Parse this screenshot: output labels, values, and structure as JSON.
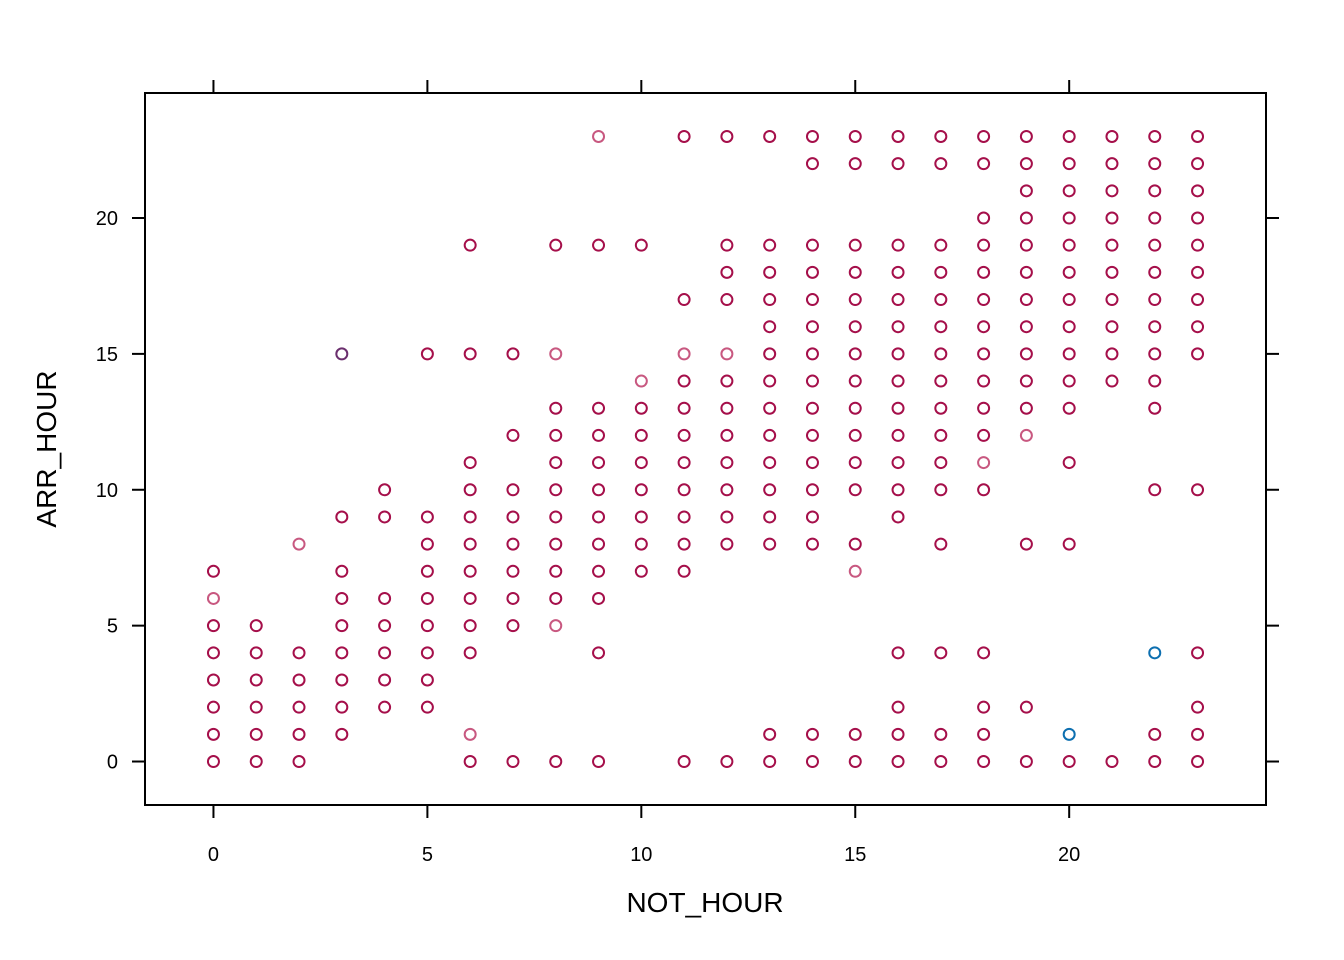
{
  "chart_data": {
    "type": "scatter",
    "title": "",
    "xlabel": "NOT_HOUR",
    "ylabel": "ARR_HOUR",
    "xlim": [
      -1.6,
      24.6
    ],
    "ylim": [
      -1.6,
      24.6
    ],
    "xticks": [
      0,
      5,
      10,
      15,
      20
    ],
    "yticks": [
      0,
      5,
      10,
      15,
      20
    ],
    "grid": false,
    "colors": {
      "default": "#a50f4a",
      "light": "#c85880",
      "purple": "#6b2f6e",
      "blue": "#0d6fb0"
    },
    "points": [
      {
        "x": 0,
        "ys": [
          0,
          1,
          2,
          3,
          4,
          5,
          6,
          7
        ]
      },
      {
        "x": 1,
        "ys": [
          0,
          1,
          2,
          3,
          4,
          5
        ]
      },
      {
        "x": 2,
        "ys": [
          0,
          1,
          2,
          3,
          4,
          8
        ]
      },
      {
        "x": 3,
        "ys": [
          1,
          2,
          3,
          4,
          5,
          6,
          7,
          9,
          15
        ]
      },
      {
        "x": 4,
        "ys": [
          2,
          3,
          4,
          5,
          6,
          9,
          10
        ]
      },
      {
        "x": 5,
        "ys": [
          2,
          3,
          4,
          5,
          6,
          7,
          8,
          9,
          15
        ]
      },
      {
        "x": 6,
        "ys": [
          0,
          1,
          4,
          5,
          6,
          7,
          8,
          9,
          10,
          11,
          15,
          19
        ]
      },
      {
        "x": 7,
        "ys": [
          0,
          5,
          6,
          7,
          8,
          9,
          10,
          12,
          15
        ]
      },
      {
        "x": 8,
        "ys": [
          0,
          5,
          6,
          7,
          8,
          9,
          10,
          11,
          12,
          13,
          15,
          19
        ]
      },
      {
        "x": 9,
        "ys": [
          0,
          4,
          6,
          7,
          8,
          9,
          10,
          11,
          12,
          13,
          19,
          23
        ]
      },
      {
        "x": 10,
        "ys": [
          7,
          8,
          9,
          10,
          11,
          12,
          13,
          14,
          19
        ]
      },
      {
        "x": 11,
        "ys": [
          0,
          7,
          8,
          9,
          10,
          11,
          12,
          13,
          14,
          15,
          17,
          23
        ]
      },
      {
        "x": 12,
        "ys": [
          0,
          8,
          9,
          10,
          11,
          12,
          13,
          14,
          15,
          17,
          18,
          19,
          23
        ]
      },
      {
        "x": 13,
        "ys": [
          0,
          1,
          8,
          9,
          10,
          11,
          12,
          13,
          14,
          15,
          16,
          17,
          18,
          19,
          23
        ]
      },
      {
        "x": 14,
        "ys": [
          0,
          1,
          8,
          9,
          10,
          11,
          12,
          13,
          14,
          15,
          16,
          17,
          18,
          19,
          22,
          23
        ]
      },
      {
        "x": 15,
        "ys": [
          0,
          1,
          7,
          8,
          10,
          11,
          12,
          13,
          14,
          15,
          16,
          17,
          18,
          19,
          22,
          23
        ]
      },
      {
        "x": 16,
        "ys": [
          0,
          1,
          2,
          4,
          9,
          10,
          11,
          12,
          13,
          14,
          15,
          16,
          17,
          18,
          19,
          22,
          23
        ]
      },
      {
        "x": 17,
        "ys": [
          0,
          1,
          4,
          8,
          10,
          11,
          12,
          13,
          14,
          15,
          16,
          17,
          18,
          19,
          22,
          23
        ]
      },
      {
        "x": 18,
        "ys": [
          0,
          1,
          2,
          4,
          10,
          11,
          12,
          13,
          14,
          15,
          16,
          17,
          18,
          19,
          20,
          22,
          23
        ]
      },
      {
        "x": 19,
        "ys": [
          0,
          2,
          8,
          12,
          13,
          14,
          15,
          16,
          17,
          18,
          19,
          20,
          21,
          22,
          23
        ]
      },
      {
        "x": 20,
        "ys": [
          0,
          1,
          8,
          11,
          13,
          14,
          15,
          16,
          17,
          18,
          19,
          20,
          21,
          22,
          23
        ]
      },
      {
        "x": 21,
        "ys": [
          0,
          14,
          15,
          16,
          17,
          18,
          19,
          20,
          21,
          22,
          23
        ]
      },
      {
        "x": 22,
        "ys": [
          0,
          1,
          4,
          10,
          13,
          14,
          15,
          16,
          17,
          18,
          19,
          20,
          21,
          22,
          23
        ]
      },
      {
        "x": 23,
        "ys": [
          0,
          1,
          2,
          4,
          10,
          15,
          16,
          17,
          18,
          19,
          20,
          21,
          22,
          23
        ]
      }
    ],
    "highlights": [
      {
        "x": 0,
        "y": 6,
        "color": "light"
      },
      {
        "x": 2,
        "y": 8,
        "color": "light"
      },
      {
        "x": 6,
        "y": 1,
        "color": "light"
      },
      {
        "x": 8,
        "y": 5,
        "color": "light"
      },
      {
        "x": 8,
        "y": 15,
        "color": "light"
      },
      {
        "x": 9,
        "y": 23,
        "color": "light"
      },
      {
        "x": 10,
        "y": 14,
        "color": "light"
      },
      {
        "x": 11,
        "y": 15,
        "color": "light"
      },
      {
        "x": 12,
        "y": 15,
        "color": "light"
      },
      {
        "x": 15,
        "y": 7,
        "color": "light"
      },
      {
        "x": 18,
        "y": 11,
        "color": "light"
      },
      {
        "x": 19,
        "y": 12,
        "color": "light"
      },
      {
        "x": 3,
        "y": 15,
        "color": "purple"
      },
      {
        "x": 20,
        "y": 1,
        "color": "blue"
      },
      {
        "x": 22,
        "y": 4,
        "color": "blue"
      }
    ]
  }
}
